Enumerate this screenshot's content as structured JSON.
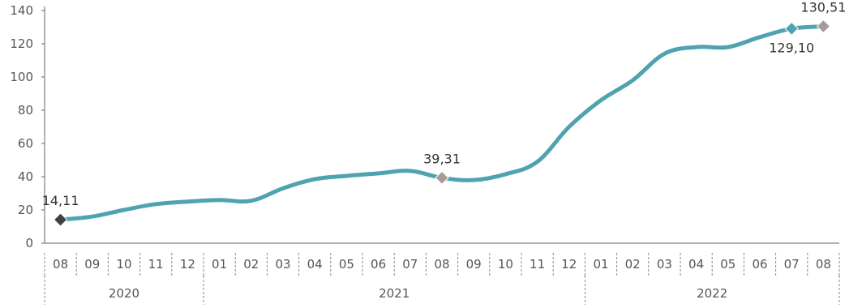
{
  "chart_data": {
    "type": "line",
    "title": "",
    "xlabel": "",
    "ylabel": "",
    "ylim": [
      0,
      140
    ],
    "yticks": [
      "0",
      "20",
      "40",
      "60",
      "80",
      "100",
      "120",
      "140"
    ],
    "grid": false,
    "categories": [
      "08",
      "09",
      "10",
      "11",
      "12",
      "01",
      "02",
      "03",
      "04",
      "05",
      "06",
      "07",
      "08",
      "09",
      "10",
      "11",
      "12",
      "01",
      "02",
      "03",
      "04",
      "05",
      "06",
      "07",
      "08"
    ],
    "years": [
      {
        "label": "2020",
        "start": 0,
        "end": 4
      },
      {
        "label": "2021",
        "start": 5,
        "end": 16
      },
      {
        "label": "2022",
        "start": 17,
        "end": 24
      }
    ],
    "series": [
      {
        "values": [
          14.11,
          16,
          20,
          23.5,
          25,
          26,
          25.5,
          33,
          38.5,
          40.5,
          42,
          43.5,
          39.31,
          38,
          41.5,
          49,
          70,
          86,
          98,
          114,
          118,
          118,
          124,
          129.1,
          130.51
        ],
        "color": "#4fa3b0"
      }
    ],
    "annotations": [
      {
        "index": 0,
        "label": "14,11",
        "marker_color": "#404040",
        "label_pos": "above"
      },
      {
        "index": 12,
        "label": "39,31",
        "marker_color": "#a89a9a",
        "label_pos": "above"
      },
      {
        "index": 23,
        "label": "129,10",
        "marker_color": "#4fa3b0",
        "label_pos": "below"
      },
      {
        "index": 24,
        "label": "130,51",
        "marker_color": "#a89a9a",
        "label_pos": "above"
      }
    ],
    "axis_color": "#666666"
  }
}
